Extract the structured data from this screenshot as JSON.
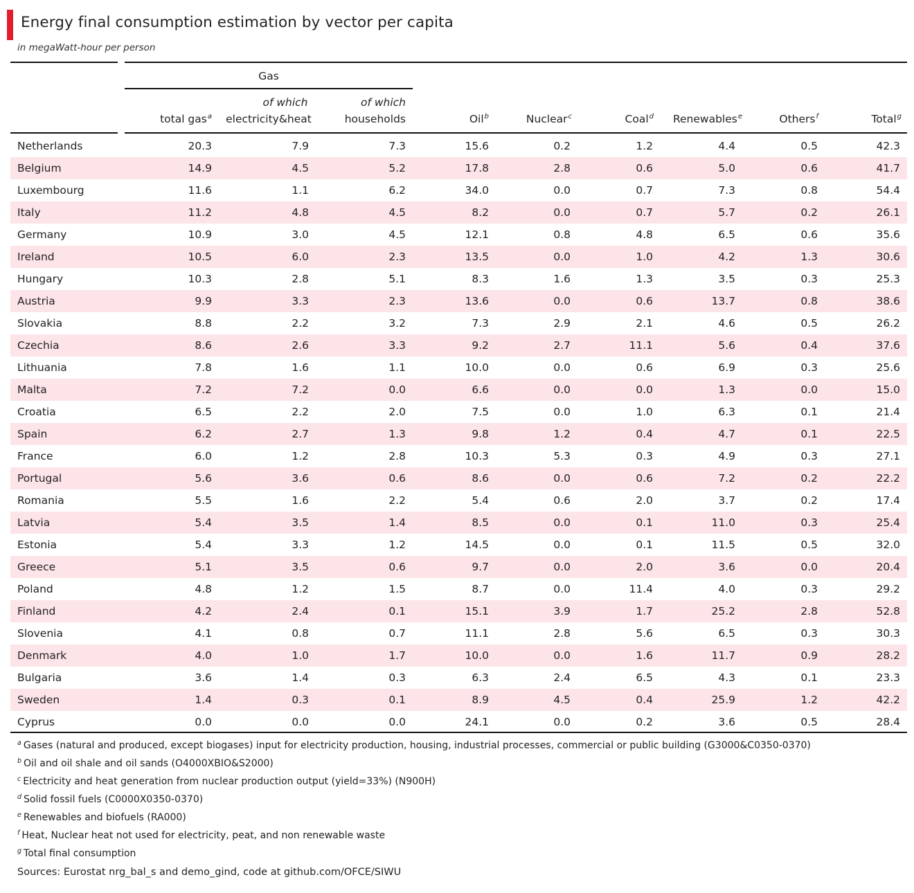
{
  "title": "Energy final consumption estimation by vector per capita",
  "subtitle": "in megaWatt-hour per person",
  "colors": {
    "accent": "#e11d2e",
    "row_alt": "#fde4e8"
  },
  "header": {
    "group_gas": "Gas",
    "total_gas": "total gas",
    "total_gas_sup": "a",
    "elec_top": "of which",
    "elec_bottom": "electricity&heat",
    "house_top": "of which",
    "house_bottom": "households",
    "oil": "Oil",
    "oil_sup": "b",
    "nuclear": "Nuclear",
    "nuclear_sup": "c",
    "coal": "Coal",
    "coal_sup": "d",
    "renewables": "Renewables",
    "renewables_sup": "e",
    "others": "Others",
    "others_sup": "f",
    "total": "Total",
    "total_sup": "g"
  },
  "rows": [
    [
      "Netherlands",
      "20.3",
      "7.9",
      "7.3",
      "15.6",
      "0.2",
      "1.2",
      "4.4",
      "0.5",
      "42.3"
    ],
    [
      "Belgium",
      "14.9",
      "4.5",
      "5.2",
      "17.8",
      "2.8",
      "0.6",
      "5.0",
      "0.6",
      "41.7"
    ],
    [
      "Luxembourg",
      "11.6",
      "1.1",
      "6.2",
      "34.0",
      "0.0",
      "0.7",
      "7.3",
      "0.8",
      "54.4"
    ],
    [
      "Italy",
      "11.2",
      "4.8",
      "4.5",
      "8.2",
      "0.0",
      "0.7",
      "5.7",
      "0.2",
      "26.1"
    ],
    [
      "Germany",
      "10.9",
      "3.0",
      "4.5",
      "12.1",
      "0.8",
      "4.8",
      "6.5",
      "0.6",
      "35.6"
    ],
    [
      "Ireland",
      "10.5",
      "6.0",
      "2.3",
      "13.5",
      "0.0",
      "1.0",
      "4.2",
      "1.3",
      "30.6"
    ],
    [
      "Hungary",
      "10.3",
      "2.8",
      "5.1",
      "8.3",
      "1.6",
      "1.3",
      "3.5",
      "0.3",
      "25.3"
    ],
    [
      "Austria",
      "9.9",
      "3.3",
      "2.3",
      "13.6",
      "0.0",
      "0.6",
      "13.7",
      "0.8",
      "38.6"
    ],
    [
      "Slovakia",
      "8.8",
      "2.2",
      "3.2",
      "7.3",
      "2.9",
      "2.1",
      "4.6",
      "0.5",
      "26.2"
    ],
    [
      "Czechia",
      "8.6",
      "2.6",
      "3.3",
      "9.2",
      "2.7",
      "11.1",
      "5.6",
      "0.4",
      "37.6"
    ],
    [
      "Lithuania",
      "7.8",
      "1.6",
      "1.1",
      "10.0",
      "0.0",
      "0.6",
      "6.9",
      "0.3",
      "25.6"
    ],
    [
      "Malta",
      "7.2",
      "7.2",
      "0.0",
      "6.6",
      "0.0",
      "0.0",
      "1.3",
      "0.0",
      "15.0"
    ],
    [
      "Croatia",
      "6.5",
      "2.2",
      "2.0",
      "7.5",
      "0.0",
      "1.0",
      "6.3",
      "0.1",
      "21.4"
    ],
    [
      "Spain",
      "6.2",
      "2.7",
      "1.3",
      "9.8",
      "1.2",
      "0.4",
      "4.7",
      "0.1",
      "22.5"
    ],
    [
      "France",
      "6.0",
      "1.2",
      "2.8",
      "10.3",
      "5.3",
      "0.3",
      "4.9",
      "0.3",
      "27.1"
    ],
    [
      "Portugal",
      "5.6",
      "3.6",
      "0.6",
      "8.6",
      "0.0",
      "0.6",
      "7.2",
      "0.2",
      "22.2"
    ],
    [
      "Romania",
      "5.5",
      "1.6",
      "2.2",
      "5.4",
      "0.6",
      "2.0",
      "3.7",
      "0.2",
      "17.4"
    ],
    [
      "Latvia",
      "5.4",
      "3.5",
      "1.4",
      "8.5",
      "0.0",
      "0.1",
      "11.0",
      "0.3",
      "25.4"
    ],
    [
      "Estonia",
      "5.4",
      "3.3",
      "1.2",
      "14.5",
      "0.0",
      "0.1",
      "11.5",
      "0.5",
      "32.0"
    ],
    [
      "Greece",
      "5.1",
      "3.5",
      "0.6",
      "9.7",
      "0.0",
      "2.0",
      "3.6",
      "0.0",
      "20.4"
    ],
    [
      "Poland",
      "4.8",
      "1.2",
      "1.5",
      "8.7",
      "0.0",
      "11.4",
      "4.0",
      "0.3",
      "29.2"
    ],
    [
      "Finland",
      "4.2",
      "2.4",
      "0.1",
      "15.1",
      "3.9",
      "1.7",
      "25.2",
      "2.8",
      "52.8"
    ],
    [
      "Slovenia",
      "4.1",
      "0.8",
      "0.7",
      "11.1",
      "2.8",
      "5.6",
      "6.5",
      "0.3",
      "30.3"
    ],
    [
      "Denmark",
      "4.0",
      "1.0",
      "1.7",
      "10.0",
      "0.0",
      "1.6",
      "11.7",
      "0.9",
      "28.2"
    ],
    [
      "Bulgaria",
      "3.6",
      "1.4",
      "0.3",
      "6.3",
      "2.4",
      "6.5",
      "4.3",
      "0.1",
      "23.3"
    ],
    [
      "Sweden",
      "1.4",
      "0.3",
      "0.1",
      "8.9",
      "4.5",
      "0.4",
      "25.9",
      "1.2",
      "42.2"
    ],
    [
      "Cyprus",
      "0.0",
      "0.0",
      "0.0",
      "24.1",
      "0.0",
      "0.2",
      "3.6",
      "0.5",
      "28.4"
    ]
  ],
  "footnotes": [
    {
      "mark": "a",
      "text": "Gases (natural and produced, except biogases) input for electricity production, housing, industrial processes, commercial or public building (G3000&C0350-0370)"
    },
    {
      "mark": "b",
      "text": "Oil and oil shale and oil sands (O4000XBIO&S2000)"
    },
    {
      "mark": "c",
      "text": "Electricity and heat generation from nuclear production output (yield=33%) (N900H)"
    },
    {
      "mark": "d",
      "text": "Solid fossil fuels (C0000X0350-0370)"
    },
    {
      "mark": "e",
      "text": "Renewables and biofuels (RA000)"
    },
    {
      "mark": "f",
      "text": "Heat, Nuclear heat not used for electricity, peat, and non renewable waste"
    },
    {
      "mark": "g",
      "text": "Total final consumption"
    }
  ],
  "source": "Sources: Eurostat nrg_bal_s and demo_gind, code at github.com/OFCE/SIWU"
}
